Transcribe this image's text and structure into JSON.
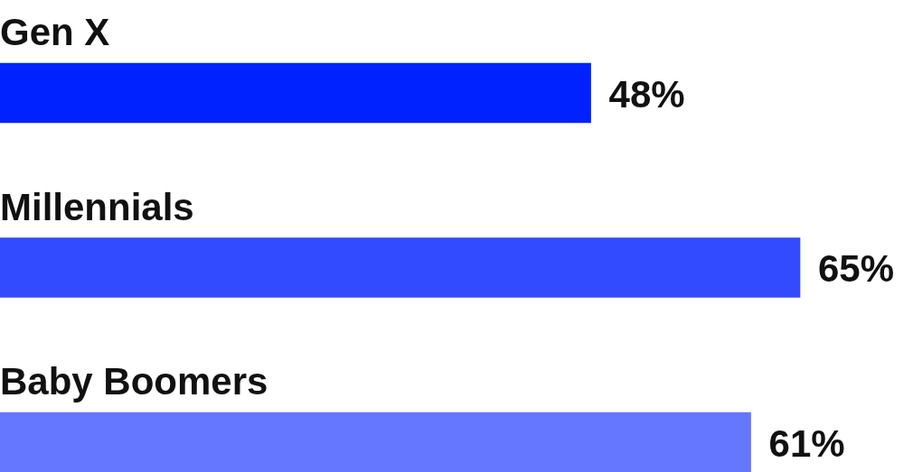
{
  "chart_data": {
    "type": "bar",
    "orientation": "horizontal",
    "categories": [
      "Gen X",
      "Millennials",
      "Baby Boomers"
    ],
    "values": [
      48,
      65,
      61
    ],
    "colors": [
      "#0022ff",
      "#334bff",
      "#6677ff"
    ],
    "value_labels": [
      "48%",
      "65%",
      "61%"
    ]
  }
}
